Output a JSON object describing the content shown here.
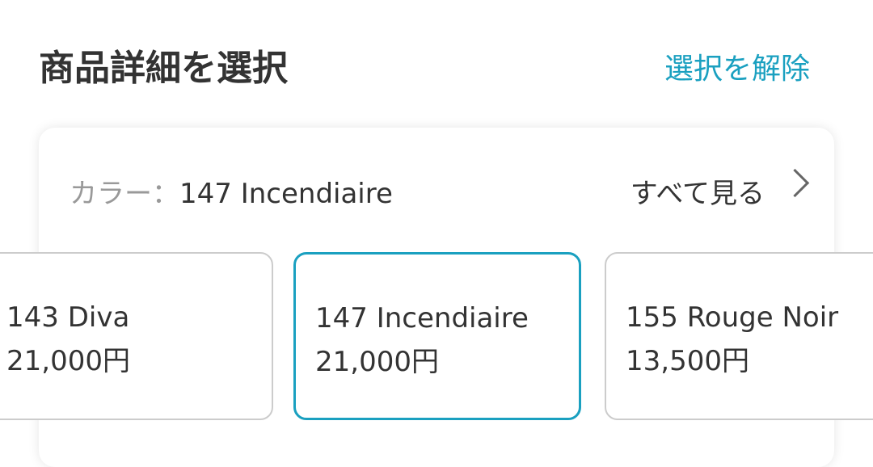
{
  "header": {
    "title": "商品詳細を選択",
    "clear_label": "選択を解除"
  },
  "color": {
    "label": "カラー：",
    "value": "147 Incendiaire",
    "see_all": "すべて見る"
  },
  "options": [
    {
      "name": "143 Diva",
      "price": "21,000円"
    },
    {
      "name": "147 Incendiaire",
      "price": "21,000円",
      "selected": true
    },
    {
      "name": "155 Rouge Noir",
      "price": "13,500円"
    }
  ],
  "accent": "#1aa0c0"
}
